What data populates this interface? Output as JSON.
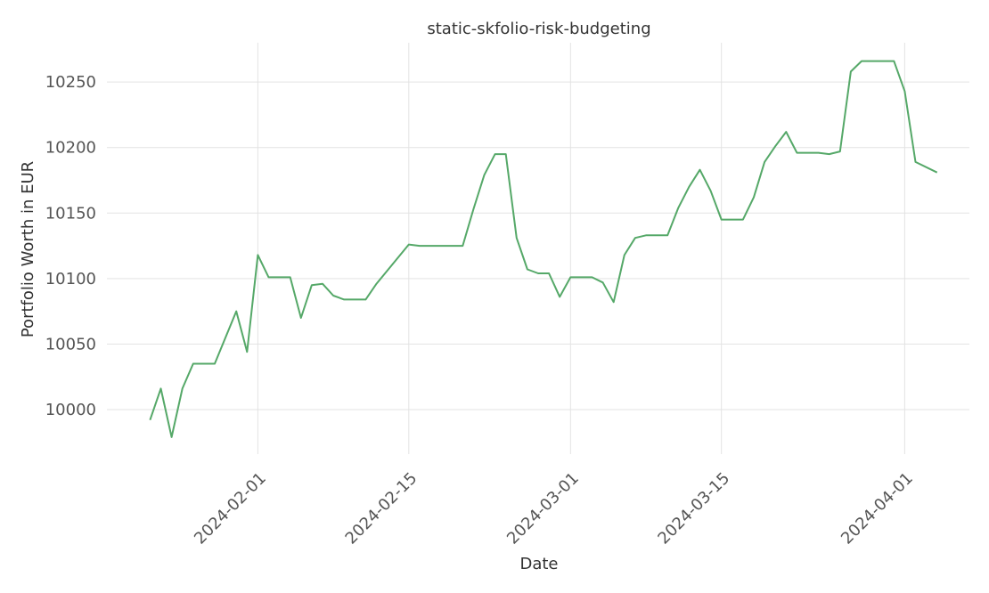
{
  "chart_data": {
    "type": "line",
    "title": "static-skfolio-risk-budgeting",
    "x_label": "Date",
    "y_label": "Portfolio Worth in EUR",
    "x": [
      "2024-01-22",
      "2024-01-23",
      "2024-01-24",
      "2024-01-25",
      "2024-01-26",
      "2024-01-28",
      "2024-01-30",
      "2024-01-31",
      "2024-02-01",
      "2024-02-02",
      "2024-02-04",
      "2024-02-05",
      "2024-02-06",
      "2024-02-07",
      "2024-02-08",
      "2024-02-09",
      "2024-02-11",
      "2024-02-12",
      "2024-02-15",
      "2024-02-16",
      "2024-02-20",
      "2024-02-21",
      "2024-02-22",
      "2024-02-23",
      "2024-02-24",
      "2024-02-25",
      "2024-02-26",
      "2024-02-27",
      "2024-02-28",
      "2024-02-29",
      "2024-03-01",
      "2024-03-03",
      "2024-03-04",
      "2024-03-05",
      "2024-03-06",
      "2024-03-07",
      "2024-03-08",
      "2024-03-10",
      "2024-03-11",
      "2024-03-12",
      "2024-03-13",
      "2024-03-14",
      "2024-03-15",
      "2024-03-17",
      "2024-03-18",
      "2024-03-19",
      "2024-03-20",
      "2024-03-21",
      "2024-03-22",
      "2024-03-24",
      "2024-03-25",
      "2024-03-26",
      "2024-03-27",
      "2024-03-28",
      "2024-03-31",
      "2024-04-01",
      "2024-04-02",
      "2024-04-04"
    ],
    "series": [
      {
        "name": "static-skfolio-risk-budgeting",
        "color": "#55a868",
        "values": [
          9992,
          10016,
          9979,
          10016,
          10035,
          10035,
          10075,
          10044,
          10118,
          10101,
          10101,
          10070,
          10095,
          10096,
          10087,
          10084,
          10084,
          10096,
          10126,
          10125,
          10125,
          10153,
          10179,
          10195,
          10195,
          10131,
          10107,
          10104,
          10104,
          10086,
          10101,
          10101,
          10097,
          10082,
          10118,
          10131,
          10133,
          10133,
          10154,
          10170,
          10183,
          10167,
          10145,
          10145,
          10162,
          10189,
          10201,
          10212,
          10196,
          10196,
          10195,
          10197,
          10258,
          10266,
          10266,
          10243,
          10189,
          10181
        ]
      }
    ],
    "xlim": [
      "2024-01-18",
      "2024-04-07"
    ],
    "xticks": [
      "2024-02-01",
      "2024-02-15",
      "2024-03-01",
      "2024-03-15",
      "2024-04-01"
    ],
    "ylim": [
      9966,
      10280
    ],
    "yticks": [
      10000,
      10050,
      10100,
      10150,
      10200,
      10250
    ],
    "grid": true
  }
}
